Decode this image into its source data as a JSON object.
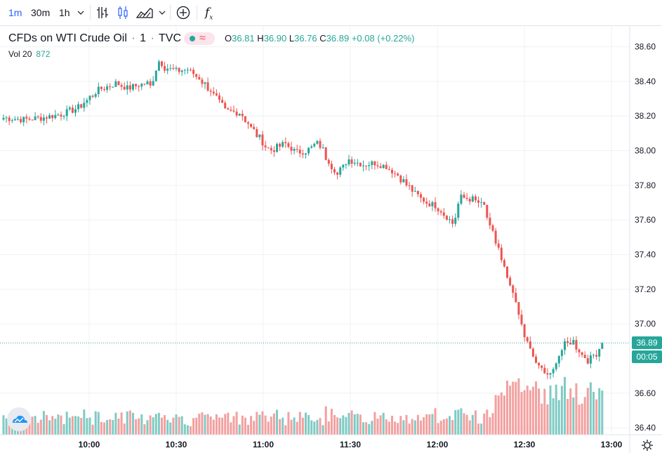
{
  "toolbar": {
    "intervals": [
      "1m",
      "30m",
      "1h"
    ],
    "active_interval": "1m",
    "fx_label": "f",
    "fx_sub": "x"
  },
  "legend": {
    "symbol": "CFDs on WTI Crude Oil",
    "interval": "1",
    "source": "TVC",
    "o_label": "O",
    "o_value": "36.81",
    "h_label": "H",
    "h_value": "36.90",
    "l_label": "L",
    "l_value": "36.76",
    "c_label": "C",
    "c_value": "36.89",
    "change": "+0.08 (+0.22%)"
  },
  "volume": {
    "label": "Vol 20",
    "value": "872"
  },
  "price_tag": {
    "price": "36.89",
    "countdown": "00:05"
  },
  "colors": {
    "up": "#26a69a",
    "down": "#ef5350",
    "vol_up": "#80cbc4",
    "vol_down": "#f3a0a0",
    "grid": "#eef0f3",
    "axis_text": "#131722"
  },
  "chart_data": {
    "type": "candlestick",
    "title": "CFDs on WTI Crude Oil · 1 · TVC",
    "y_ticks": [
      "38.60",
      "38.40",
      "38.20",
      "38.00",
      "37.80",
      "37.60",
      "37.40",
      "37.20",
      "37.00",
      "36.60",
      "36.40"
    ],
    "ylim": [
      36.36,
      38.72
    ],
    "x_ticks": [
      "10:00",
      "10:30",
      "11:00",
      "11:30",
      "12:00",
      "12:30",
      "13:00"
    ],
    "xlim_minutes": [
      0,
      226
    ],
    "close_path": [
      [
        0,
        38.19
      ],
      [
        10,
        38.18
      ],
      [
        20,
        38.19
      ],
      [
        30,
        38.21
      ],
      [
        40,
        38.25
      ],
      [
        50,
        38.35
      ],
      [
        60,
        38.39
      ],
      [
        66,
        38.36
      ],
      [
        72,
        38.38
      ],
      [
        76,
        38.39
      ],
      [
        79,
        38.36
      ],
      [
        82,
        38.53
      ],
      [
        86,
        38.48
      ],
      [
        92,
        38.46
      ],
      [
        98,
        38.47
      ],
      [
        104,
        38.42
      ],
      [
        110,
        38.35
      ],
      [
        118,
        38.23
      ],
      [
        126,
        38.22
      ],
      [
        134,
        38.1
      ],
      [
        142,
        38.0
      ],
      [
        150,
        38.04
      ],
      [
        156,
        37.99
      ],
      [
        162,
        38.0
      ],
      [
        168,
        38.05
      ],
      [
        172,
        37.96
      ],
      [
        178,
        37.86
      ],
      [
        184,
        37.95
      ],
      [
        192,
        37.92
      ],
      [
        198,
        37.93
      ],
      [
        204,
        37.91
      ],
      [
        210,
        37.86
      ],
      [
        216,
        37.79
      ],
      [
        222,
        37.73
      ],
      [
        226,
        37.7
      ]
    ],
    "close_path_2": [
      [
        0,
        37.7
      ],
      [
        5,
        37.68
      ],
      [
        10,
        37.62
      ],
      [
        14,
        37.58
      ],
      [
        18,
        37.73
      ],
      [
        24,
        37.72
      ],
      [
        30,
        37.68
      ],
      [
        34,
        37.55
      ],
      [
        38,
        37.44
      ],
      [
        42,
        37.28
      ],
      [
        46,
        37.16
      ],
      [
        50,
        37.0
      ],
      [
        54,
        36.88
      ],
      [
        58,
        36.78
      ],
      [
        62,
        36.72
      ],
      [
        66,
        36.7
      ],
      [
        70,
        36.82
      ],
      [
        74,
        36.88
      ],
      [
        78,
        36.9
      ],
      [
        82,
        36.83
      ],
      [
        86,
        36.79
      ],
      [
        90,
        36.83
      ],
      [
        94,
        36.89
      ]
    ],
    "last_close": 36.89
  }
}
